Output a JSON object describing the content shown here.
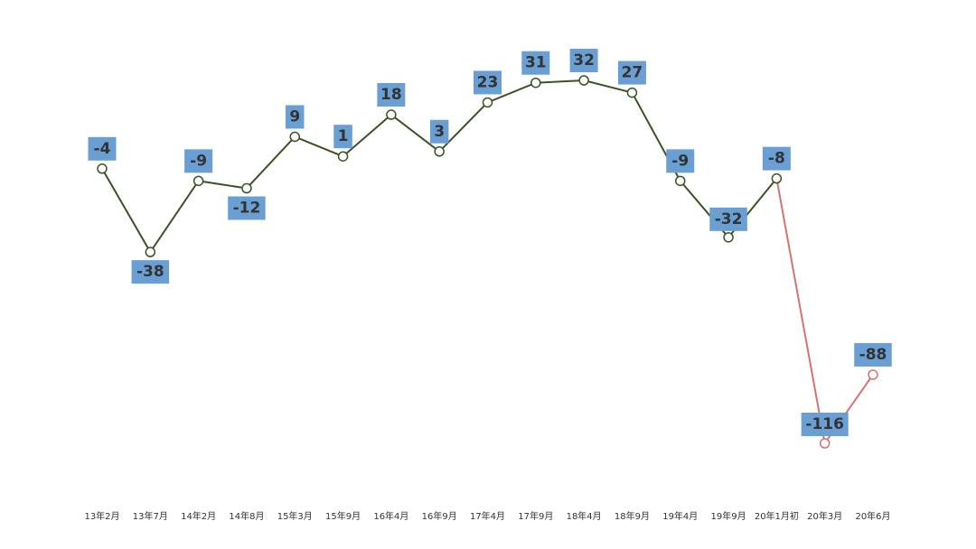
{
  "chart_data": {
    "type": "line",
    "categories": [
      "13年2月",
      "13年7月",
      "14年2月",
      "14年8月",
      "15年3月",
      "15年9月",
      "16年4月",
      "16年9月",
      "17年4月",
      "17年9月",
      "18年4月",
      "18年9月",
      "19年4月",
      "19年9月",
      "20年1月初",
      "20年3月",
      "20年6月"
    ],
    "series": [
      {
        "color": "#3b5323",
        "values": [
          -4,
          -38,
          -9,
          -12,
          9,
          1,
          18,
          3,
          23,
          31,
          32,
          27,
          -9,
          -32,
          -8,
          null,
          null
        ]
      },
      {
        "color": "#d9726f",
        "values": [
          null,
          null,
          null,
          null,
          null,
          null,
          null,
          null,
          null,
          null,
          null,
          null,
          null,
          null,
          -8,
          -116,
          -88
        ]
      }
    ]
  }
}
